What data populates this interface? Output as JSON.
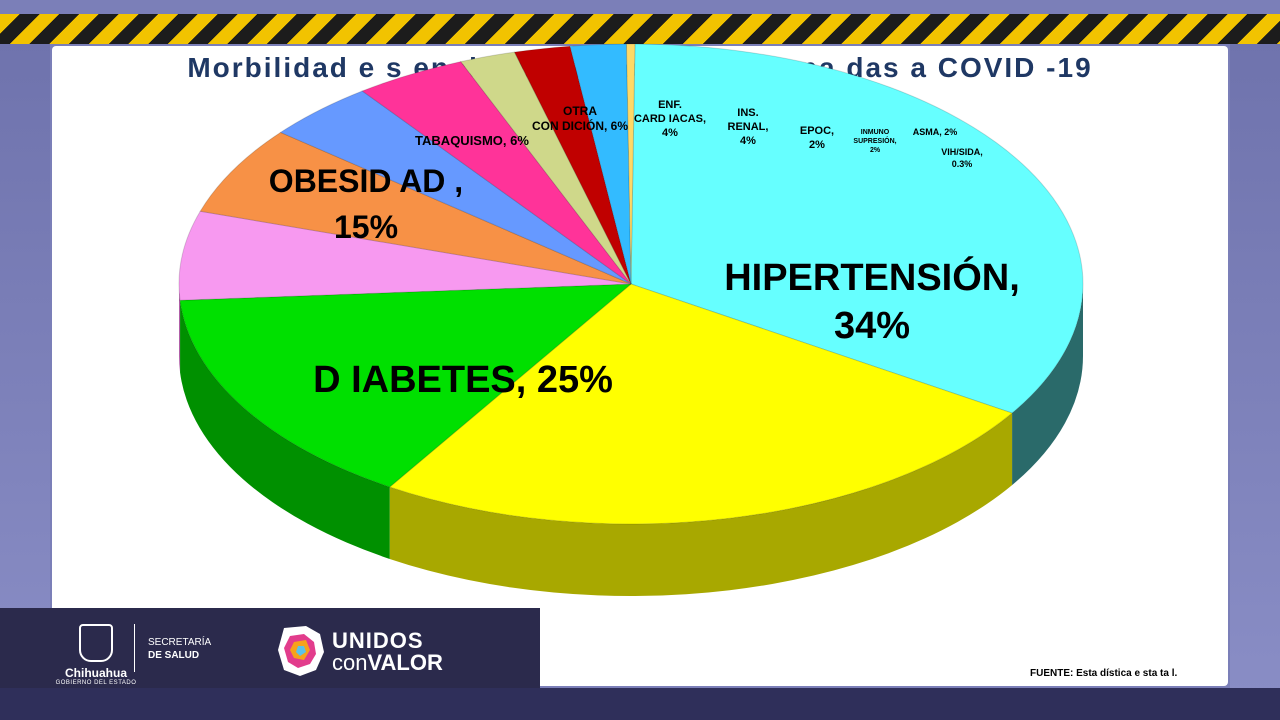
{
  "chart_data": {
    "type": "pie",
    "title": "Morbilidad e s en de funcio nes rela cio na das a COVID -19",
    "slices": [
      {
        "label": "HIPERTENSIÓN,\n34%",
        "value": 34,
        "color": "#66ffff",
        "side": "#2a6a6a"
      },
      {
        "label": "D IABETES, 25%",
        "value": 25,
        "color": "#ffff00",
        "side": "#a8a800"
      },
      {
        "label": "OBESID AD ,\n15%",
        "value": 15,
        "color": "#00e000",
        "side": "#009000"
      },
      {
        "label": "TABAQUISMO, 6%",
        "value": 6,
        "color": "#f799f0",
        "side": "#b060a8"
      },
      {
        "label": "OTRA\nCON DICIÓN, 6%",
        "value": 6,
        "color": "#f79146",
        "side": "#b05820"
      },
      {
        "label": "ENF.\nCARD IACAS,\n4%",
        "value": 4,
        "color": "#6699ff",
        "side": "#3a5aa8"
      },
      {
        "label": "INS.\nRENAL,\n4%",
        "value": 4,
        "color": "#ff3399",
        "side": "#a81a60"
      },
      {
        "label": "EPOC,\n2%",
        "value": 2,
        "color": "#cfd88a",
        "side": "#8a9050"
      },
      {
        "label": "INMUNO\nSUPRESIÓN,\n2%",
        "value": 2,
        "color": "#c00000",
        "side": "#700000"
      },
      {
        "label": "ASMA, 2%",
        "value": 2,
        "color": "#33bbff",
        "side": "#1a70a0"
      },
      {
        "label": "VIH/SIDA,\n0.3%",
        "value": 0.3,
        "color": "#ffd966",
        "side": "#b09030"
      }
    ]
  },
  "footer": {
    "gov_name": "Chihuahua",
    "gov_sub": "GOBIERNO DEL ESTADO",
    "sec_line1": "SECRETARÍA",
    "sec_line2": "DE SALUD",
    "campaign_top": "UNIDOS",
    "campaign_bottom_light": "con",
    "campaign_bottom_bold": "VALOR"
  },
  "source": "FUENTE: Esta dística e sta ta l."
}
